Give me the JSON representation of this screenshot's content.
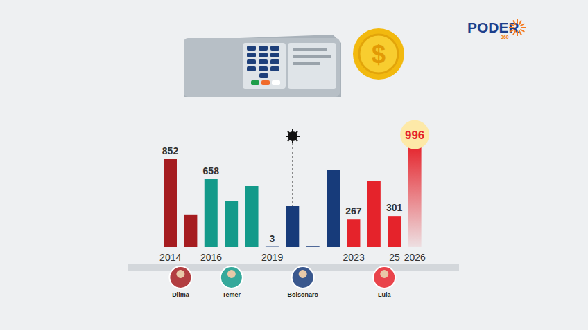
{
  "chart_data": {
    "type": "bar",
    "categories": [
      "2014",
      null,
      "2016",
      null,
      null,
      "2019",
      null,
      null,
      null,
      "2023",
      null,
      "25",
      "2026"
    ],
    "values": [
      852,
      310,
      658,
      443,
      591,
      3,
      396,
      5,
      745,
      267,
      645,
      301,
      996
    ],
    "value_labels": [
      "852",
      null,
      "658",
      null,
      null,
      "3",
      null,
      null,
      null,
      "267",
      null,
      "301",
      "996"
    ],
    "colors": [
      "#a51c20",
      "#a51c20",
      "#139a8a",
      "#139a8a",
      "#139a8a",
      "#173b7a",
      "#173b7a",
      "#173b7a",
      "#173b7a",
      "#e5232b",
      "#e5232b",
      "#e5232b",
      "#e5232b"
    ],
    "ylim": [
      0,
      1000
    ],
    "data_labels": true,
    "tick_labels": "x",
    "grid": false,
    "annotations": [
      {
        "position": 6,
        "marker": "virus"
      }
    ],
    "presidents": [
      {
        "name": "Dilma",
        "color": "#a51c20"
      },
      {
        "name": "Temer",
        "color": "#139a8a"
      },
      {
        "name": "Bolsonaro",
        "color": "#173b7a"
      },
      {
        "name": "Lula",
        "color": "#e5232b"
      }
    ]
  },
  "logo": {
    "text": "PODER",
    "sub": "360"
  },
  "coin_symbol": "$"
}
